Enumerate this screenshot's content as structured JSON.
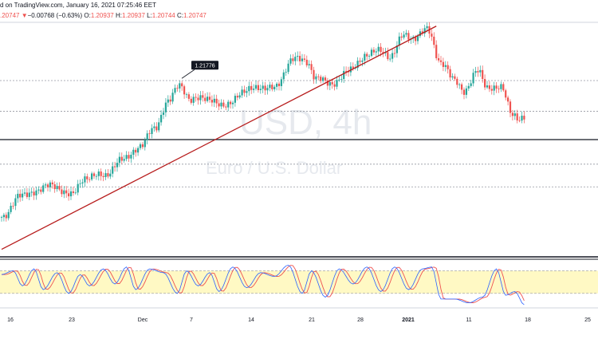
{
  "header": {
    "published": "d on TradingView.com, January 16, 2021 07:25:46 EET",
    "last_price": ".20747",
    "change_arrow": "▼",
    "change": "−0.00768 (−0.63%)",
    "open_label": "O:",
    "open_value": "1.20937",
    "high_label": "H:",
    "high_value": "1.20937",
    "low_label": "L:",
    "low_value": "1.20744",
    "close_label": "C:",
    "close_value": "1.20747"
  },
  "watermark": {
    "symbol_line": "USD, 4h",
    "description": "Euro / U.S. Dollar"
  },
  "colors": {
    "up": "#26a69a",
    "down": "#ef5350",
    "trendline": "#b71c1c",
    "stoch_k": "#2962ff",
    "stoch_d": "#ef5350",
    "stoch_band": "#fff9c4"
  },
  "chart_data": {
    "type": "candlestick",
    "interval": "4h",
    "x_tick_labels": [
      "16",
      "23",
      "Dec",
      "7",
      "14",
      "21",
      "28",
      "2021",
      "11",
      "18",
      "25"
    ],
    "price_anchors": [
      {
        "i": 0,
        "v": 1.1815
      },
      {
        "i": 8,
        "v": 1.187
      },
      {
        "i": 15,
        "v": 1.1885
      },
      {
        "i": 22,
        "v": 1.19
      },
      {
        "i": 30,
        "v": 1.1872
      },
      {
        "i": 36,
        "v": 1.192
      },
      {
        "i": 44,
        "v": 1.1925
      },
      {
        "i": 52,
        "v": 1.1965
      },
      {
        "i": 60,
        "v": 1.2002
      },
      {
        "i": 66,
        "v": 1.205
      },
      {
        "i": 72,
        "v": 1.212
      },
      {
        "i": 77,
        "v": 1.2165
      },
      {
        "i": 82,
        "v": 1.2125
      },
      {
        "i": 90,
        "v": 1.213
      },
      {
        "i": 96,
        "v": 1.2105
      },
      {
        "i": 104,
        "v": 1.2145
      },
      {
        "i": 112,
        "v": 1.216
      },
      {
        "i": 118,
        "v": 1.2155
      },
      {
        "i": 126,
        "v": 1.2235
      },
      {
        "i": 132,
        "v": 1.2225
      },
      {
        "i": 136,
        "v": 1.2185
      },
      {
        "i": 142,
        "v": 1.2165
      },
      {
        "i": 150,
        "v": 1.22
      },
      {
        "i": 158,
        "v": 1.2245
      },
      {
        "i": 164,
        "v": 1.2255
      },
      {
        "i": 168,
        "v": 1.224
      },
      {
        "i": 174,
        "v": 1.2295
      },
      {
        "i": 178,
        "v": 1.229
      },
      {
        "i": 184,
        "v": 1.231
      },
      {
        "i": 190,
        "v": 1.2225
      },
      {
        "i": 196,
        "v": 1.2175
      },
      {
        "i": 200,
        "v": 1.215
      },
      {
        "i": 206,
        "v": 1.22
      },
      {
        "i": 210,
        "v": 1.216
      },
      {
        "i": 216,
        "v": 1.2155
      },
      {
        "i": 221,
        "v": 1.209
      },
      {
        "i": 224,
        "v": 1.2075
      }
    ],
    "annotation": {
      "label": "1.21776",
      "price": 1.21776
    },
    "horizontal_levels": [
      1.2176,
      1.2095,
      1.1955,
      1.1895
    ],
    "trendline": {
      "from": {
        "i": 0,
        "v": 1.173
      },
      "to": {
        "i": 188,
        "v": 1.232
      }
    },
    "stochastic": {
      "k_anchors": [
        {
          "i": 0,
          "v": 70
        },
        {
          "i": 5,
          "v": 80
        },
        {
          "i": 9,
          "v": 40
        },
        {
          "i": 14,
          "v": 85
        },
        {
          "i": 18,
          "v": 30
        },
        {
          "i": 24,
          "v": 75
        },
        {
          "i": 29,
          "v": 20
        },
        {
          "i": 34,
          "v": 70
        },
        {
          "i": 38,
          "v": 40
        },
        {
          "i": 44,
          "v": 85
        },
        {
          "i": 49,
          "v": 45
        },
        {
          "i": 54,
          "v": 90
        },
        {
          "i": 58,
          "v": 30
        },
        {
          "i": 64,
          "v": 85
        },
        {
          "i": 70,
          "v": 75
        },
        {
          "i": 76,
          "v": 20
        },
        {
          "i": 80,
          "v": 80
        },
        {
          "i": 85,
          "v": 40
        },
        {
          "i": 90,
          "v": 75
        },
        {
          "i": 94,
          "v": 25
        },
        {
          "i": 100,
          "v": 90
        },
        {
          "i": 106,
          "v": 35
        },
        {
          "i": 112,
          "v": 75
        },
        {
          "i": 118,
          "v": 65
        },
        {
          "i": 124,
          "v": 95
        },
        {
          "i": 130,
          "v": 20
        },
        {
          "i": 134,
          "v": 80
        },
        {
          "i": 140,
          "v": 10
        },
        {
          "i": 146,
          "v": 85
        },
        {
          "i": 152,
          "v": 45
        },
        {
          "i": 158,
          "v": 90
        },
        {
          "i": 164,
          "v": 25
        },
        {
          "i": 170,
          "v": 90
        },
        {
          "i": 176,
          "v": 30
        },
        {
          "i": 182,
          "v": 85
        },
        {
          "i": 186,
          "v": 90
        },
        {
          "i": 190,
          "v": 5
        },
        {
          "i": 196,
          "v": 5
        },
        {
          "i": 202,
          "v": -5
        },
        {
          "i": 208,
          "v": 10
        },
        {
          "i": 214,
          "v": 85
        },
        {
          "i": 218,
          "v": 15
        },
        {
          "i": 222,
          "v": 25
        },
        {
          "i": 226,
          "v": -10
        }
      ],
      "upper_band": 80,
      "lower_band": 20
    }
  }
}
